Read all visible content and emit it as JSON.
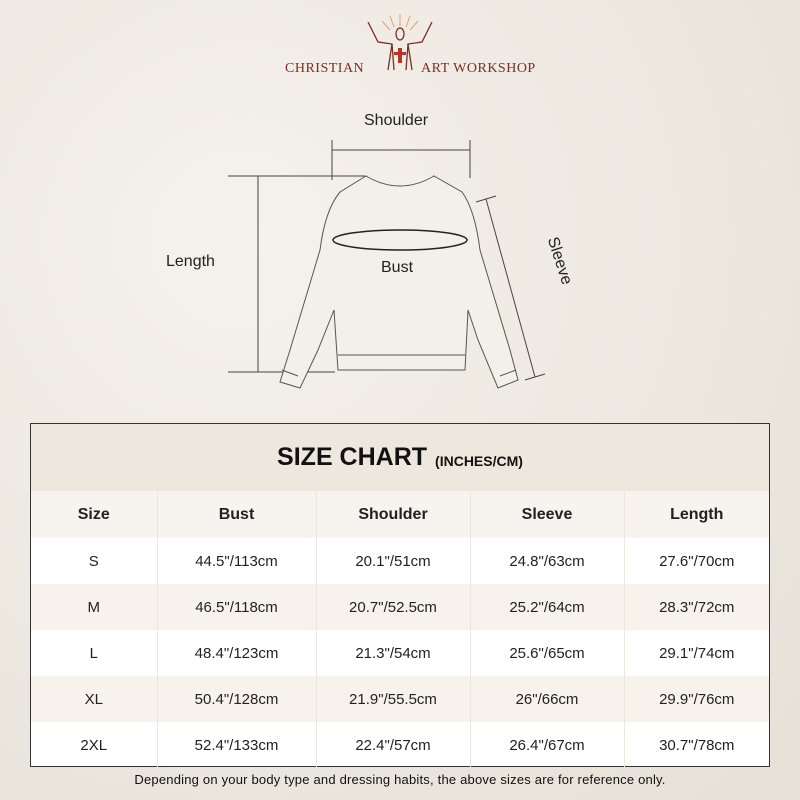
{
  "brand": {
    "left": "CHRISTIAN",
    "right": "ART WORKSHOP",
    "logo_icon": "jesus-cross-icon",
    "color": "#7a2f25"
  },
  "diagram": {
    "shoulder": "Shoulder",
    "length": "Length",
    "bust": "Bust",
    "sleeve": "Sleeve"
  },
  "table": {
    "title": "SIZE CHART",
    "subtitle": "(INCHES/CM)",
    "headers": [
      "Size",
      "Bust",
      "Shoulder",
      "Sleeve",
      "Length"
    ],
    "rows": [
      [
        "S",
        "44.5\"/113cm",
        "20.1\"/51cm",
        "24.8\"/63cm",
        "27.6\"/70cm"
      ],
      [
        "M",
        "46.5\"/118cm",
        "20.7\"/52.5cm",
        "25.2\"/64cm",
        "28.3\"/72cm"
      ],
      [
        "L",
        "48.4\"/123cm",
        "21.3\"/54cm",
        "25.6\"/65cm",
        "29.1\"/74cm"
      ],
      [
        "XL",
        "50.4\"/128cm",
        "21.9\"/55.5cm",
        "26\"/66cm",
        "29.9\"/76cm"
      ],
      [
        "2XL",
        "52.4\"/133cm",
        "22.4\"/57cm",
        "26.4\"/67cm",
        "30.7\"/78cm"
      ]
    ]
  },
  "note": "Depending on your body type and dressing habits, the above sizes are for reference only."
}
